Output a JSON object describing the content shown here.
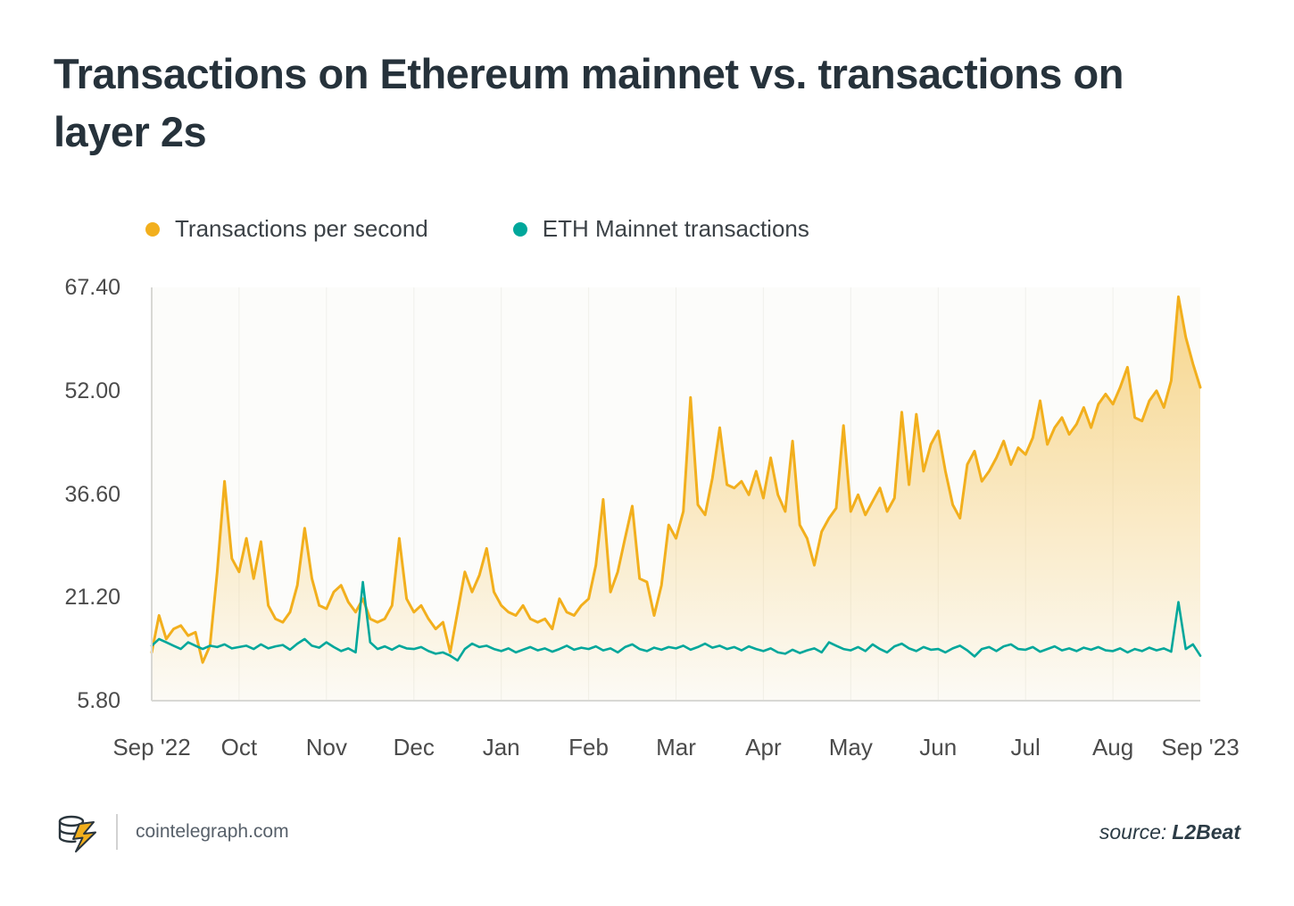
{
  "title_lines": [
    "Transactions on Ethereum mainnet vs. transactions on",
    "layer 2s"
  ],
  "footer": {
    "site": "cointelegraph.com",
    "source_label": "source:",
    "source_value": "L2Beat",
    "logo": "cointelegraph-coin-bolt-logo"
  },
  "colors": {
    "accent_yellow": "#F2AF1D",
    "accent_teal": "#00A79B",
    "title_text": "#26323B",
    "axis_text": "#4B4B4B",
    "axis_line": "#D8D8D4",
    "gridline": "#F0F0EC"
  },
  "chart_data": {
    "type": "line",
    "title": "Transactions on Ethereum mainnet vs. transactions on layer 2s",
    "legend_position": "top",
    "x_tick_labels": [
      "Sep '22",
      "Oct",
      "Nov",
      "Dec",
      "Jan",
      "Feb",
      "Mar",
      "Apr",
      "May",
      "Jun",
      "Jul",
      "Aug",
      "Sep '23"
    ],
    "x_range_note": "Sep 2022 to Sep 2023, ~12 samples per month",
    "y_ticks": [
      5.8,
      21.2,
      36.6,
      52.0,
      67.4
    ],
    "ylim": [
      5.8,
      67.4
    ],
    "grid": {
      "vertical_month_lines": true,
      "horizontal_lines": false
    },
    "points_per_month": 12,
    "series": [
      {
        "id": "tps",
        "name": "Transactions per second",
        "color": "#F2AF1D",
        "area": true,
        "values": [
          13,
          18.5,
          15,
          16.5,
          17,
          15.5,
          16,
          11.5,
          14,
          25,
          38.5,
          27,
          25,
          30,
          24,
          29.5,
          20,
          18,
          17.5,
          19,
          23,
          31.5,
          24,
          20,
          19.5,
          22,
          23,
          20.5,
          19,
          21,
          18,
          17.5,
          18,
          20,
          30,
          21,
          19,
          20,
          18,
          16.5,
          17.5,
          13,
          19,
          25,
          22,
          24.5,
          28.5,
          22,
          20,
          19,
          18.5,
          20,
          18,
          17.5,
          18,
          16.5,
          21,
          19,
          18.5,
          20,
          21,
          26,
          35.8,
          22,
          25,
          30,
          34.8,
          24,
          23.5,
          18.5,
          23,
          32,
          30,
          34,
          51,
          35,
          33.5,
          39,
          46.5,
          38,
          37.5,
          38.5,
          36.5,
          40,
          36,
          42,
          36.5,
          34,
          44.5,
          32,
          30,
          26,
          31,
          33,
          34.5,
          46.8,
          34,
          36.5,
          33.5,
          35.5,
          37.5,
          34,
          36,
          48.8,
          38,
          48.5,
          40,
          44,
          46,
          40,
          35,
          33,
          41,
          43,
          38.5,
          40,
          42,
          44.5,
          41,
          43.5,
          42.5,
          45,
          50.5,
          44,
          46.5,
          48,
          45.5,
          47,
          49.5,
          46.5,
          50,
          51.5,
          50,
          52.5,
          55.5,
          48,
          47.5,
          50.5,
          52,
          49.5,
          53.5,
          66,
          60,
          56,
          52.5
        ]
      },
      {
        "id": "eth-mainnet",
        "name": "ETH Mainnet transactions",
        "color": "#00A79B",
        "area": false,
        "values": [
          14,
          15,
          14.5,
          14,
          13.5,
          14.5,
          14,
          13.5,
          14,
          13.8,
          14.2,
          13.6,
          13.8,
          14,
          13.5,
          14.2,
          13.6,
          13.9,
          14.1,
          13.4,
          14.3,
          15,
          14,
          13.7,
          14.5,
          13.8,
          13.2,
          13.6,
          13,
          23.5,
          14.5,
          13.5,
          13.9,
          13.4,
          14,
          13.6,
          13.5,
          13.8,
          13.2,
          12.8,
          13,
          12.5,
          11.8,
          13.5,
          14.3,
          13.8,
          14,
          13.5,
          13.2,
          13.6,
          13,
          13.4,
          13.8,
          13.3,
          13.6,
          13.1,
          13.5,
          14,
          13.4,
          13.7,
          13.5,
          13.9,
          13.3,
          13.6,
          13,
          13.8,
          14.2,
          13.5,
          13.2,
          13.7,
          13.4,
          13.8,
          13.6,
          14,
          13.4,
          13.8,
          14.3,
          13.7,
          14,
          13.5,
          13.8,
          13.3,
          13.9,
          13.5,
          13.2,
          13.6,
          13,
          12.8,
          13.4,
          12.9,
          13.3,
          13.6,
          13,
          14.5,
          14,
          13.5,
          13.3,
          13.8,
          13.2,
          14.2,
          13.5,
          13,
          13.9,
          14.3,
          13.6,
          13.2,
          13.8,
          13.4,
          13.5,
          13,
          13.6,
          14,
          13.3,
          12.4,
          13.5,
          13.8,
          13.2,
          13.9,
          14.2,
          13.5,
          13.4,
          13.8,
          13.1,
          13.5,
          13.9,
          13.3,
          13.6,
          13.2,
          13.7,
          13.4,
          13.8,
          13.3,
          13.2,
          13.6,
          13,
          13.5,
          13.2,
          13.7,
          13.3,
          13.6,
          13.1,
          20.5,
          13.5,
          14.2,
          12.5
        ]
      }
    ]
  }
}
